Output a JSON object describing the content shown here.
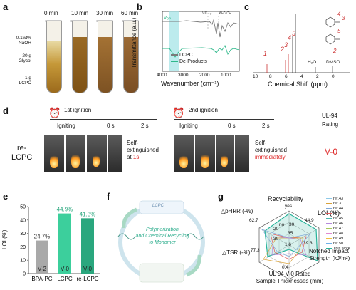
{
  "panels": {
    "a": "a",
    "b": "b",
    "c": "c",
    "d": "d",
    "e": "e",
    "f": "f",
    "g": "g"
  },
  "panel_a": {
    "times": [
      "0 min",
      "10 min",
      "30 min",
      "60 min"
    ],
    "labels": [
      "0.1wt%",
      "NaOH",
      "20 g",
      "Glycol",
      "1 g",
      "LCPC"
    ]
  },
  "panel_b": {
    "ylabel": "Transmittance (a.u.)",
    "xlabel": "Wavenumber (cm⁻¹)",
    "xticks": [
      "4000",
      "3000",
      "2000",
      "1000"
    ],
    "band_labels": [
      "vₒₕ",
      "vᴄ₌ₒ",
      "vᴄ-ₒ-ᴄ"
    ],
    "legend": [
      "LCPC",
      "De-Products"
    ],
    "colors": {
      "lcpc": "#7a7a7a",
      "de": "#2db88a",
      "band": "#9fe3e6"
    }
  },
  "panel_c": {
    "xlabel": "Chemical Shift (ppm)",
    "xticks": [
      "10",
      "8",
      "6",
      "4",
      "2",
      "0"
    ],
    "peak_labels": [
      "1",
      "2",
      "3",
      "4",
      "5"
    ],
    "solvents": [
      "H₂O",
      "DMSO"
    ]
  },
  "panel_d": {
    "ignition1": "1st ignition",
    "ignition2": "2nd ignition",
    "igniting1": "Igniting",
    "igniting2": "Igniting",
    "t0a": "0 s",
    "t2a": "2 s",
    "t0b": "0 s",
    "t2b": "2 s",
    "ul94_title": "UL-94",
    "ul94_rating": "Rating",
    "sample": "re-",
    "sample2": "LCPC",
    "self1": "Self-",
    "ext1": "extinguished",
    "at1": "at",
    "one": "1s",
    "self2": "Self-",
    "ext2": "extinguished",
    "immediately": "immediately",
    "result": "V-0"
  },
  "panel_e": {
    "ylabel": "LOI (%)",
    "yticks": [
      "50",
      "40",
      "30",
      "20",
      "10",
      "0"
    ]
  },
  "panel_f": {
    "center_text_1": "Polymerization",
    "center_text_2": "and Chemical Recycling",
    "center_text_3": "to Monomer",
    "top_label": "LCPC"
  },
  "panel_g": {
    "axes": [
      "Recyclability",
      "LOI (%)",
      "Notched Impact Strength (kJ/m²)",
      "UL 94 V-0 Rated Sample Thicknesses (mm)",
      "△TSR (-%)",
      "△pHRR (-%)"
    ],
    "axis_labels_display": {
      "recyclability": "Recyclability",
      "yes": "yes",
      "loi": "LOI (%)",
      "notched1": "Notched Impact",
      "notched2": "Strength (kJ/m²)",
      "ul1": "UL 94 V-0 Rated",
      "ul2": "Sample Thicknesses (mm)",
      "tsr": "△TSR (-%)",
      "phrr": "△pHRR (-%)"
    },
    "values_display": {
      "v449": "44.9",
      "v393": "39.3",
      "v04": "0.4",
      "v16": "1.6",
      "v773": "77.3",
      "v627": "62.7",
      "v35": "35",
      "v30a": "30",
      "v30b": "30",
      "v20": "20",
      "no": "no"
    },
    "legend": [
      "ref.43",
      "ref.31",
      "ref.44",
      "ref.51",
      "ref.45",
      "ref.46",
      "ref.47",
      "ref.48",
      "ref.49",
      "ref.50",
      "This work"
    ],
    "legend_colors": [
      "#8ec9e8",
      "#d9a23a",
      "#7fa7d9",
      "#e05a5a",
      "#4cb5b0",
      "#b58adb",
      "#a6c95a",
      "#e08ad0",
      "#f0c040",
      "#6fb0e8",
      "#27b39a"
    ]
  },
  "chart_data": [
    {
      "type": "bar",
      "categories": [
        "BPA-PC",
        "LCPC",
        "re-LCPC"
      ],
      "values": [
        24.7,
        44.9,
        41.3
      ],
      "data_labels": [
        "24.7%",
        "44.9%",
        "41.3%"
      ],
      "bar_text": [
        "V-2",
        "V-0",
        "V-0"
      ],
      "ylabel": "LOI (%)",
      "ylim": [
        0,
        50
      ],
      "colors": [
        "#a9a9a9",
        "#3ccf9c",
        "#2aa77e"
      ]
    }
  ]
}
